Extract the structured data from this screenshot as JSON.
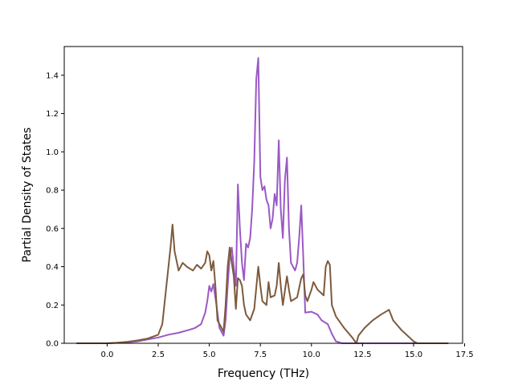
{
  "chart_data": {
    "type": "line",
    "title": "",
    "xlabel": "Frequency (THz)",
    "ylabel": "Partial Density of States",
    "xlim": [
      -2.1,
      17.4
    ],
    "ylim": [
      0,
      1.55
    ],
    "xticks": [
      0.0,
      2.5,
      5.0,
      7.5,
      10.0,
      12.5,
      15.0,
      17.5
    ],
    "xtick_labels": [
      "0.0",
      "2.5",
      "5.0",
      "7.5",
      "10.0",
      "12.5",
      "15.0",
      "17.5"
    ],
    "yticks": [
      0.0,
      0.2,
      0.4,
      0.6,
      0.8,
      1.0,
      1.2,
      1.4
    ],
    "ytick_labels": [
      "0.0",
      "0.2",
      "0.4",
      "0.6",
      "0.8",
      "1.0",
      "1.2",
      "1.4"
    ],
    "grid": false,
    "legend": "none",
    "series": [
      {
        "color": "#9b59c5",
        "points": [
          [
            -1.5,
            0.0
          ],
          [
            0.0,
            0.0
          ],
          [
            0.5,
            0.002
          ],
          [
            1.0,
            0.005
          ],
          [
            1.5,
            0.01
          ],
          [
            2.0,
            0.02
          ],
          [
            2.5,
            0.03
          ],
          [
            3.0,
            0.045
          ],
          [
            3.5,
            0.055
          ],
          [
            4.0,
            0.07
          ],
          [
            4.3,
            0.08
          ],
          [
            4.6,
            0.1
          ],
          [
            4.8,
            0.16
          ],
          [
            4.9,
            0.22
          ],
          [
            5.0,
            0.3
          ],
          [
            5.1,
            0.27
          ],
          [
            5.2,
            0.31
          ],
          [
            5.35,
            0.2
          ],
          [
            5.5,
            0.08
          ],
          [
            5.7,
            0.04
          ],
          [
            5.8,
            0.12
          ],
          [
            5.9,
            0.3
          ],
          [
            6.0,
            0.45
          ],
          [
            6.1,
            0.5
          ],
          [
            6.2,
            0.4
          ],
          [
            6.3,
            0.3
          ],
          [
            6.4,
            0.83
          ],
          [
            6.5,
            0.6
          ],
          [
            6.6,
            0.42
          ],
          [
            6.7,
            0.33
          ],
          [
            6.8,
            0.52
          ],
          [
            6.9,
            0.5
          ],
          [
            7.0,
            0.55
          ],
          [
            7.1,
            0.7
          ],
          [
            7.2,
            0.95
          ],
          [
            7.3,
            1.38
          ],
          [
            7.4,
            1.49
          ],
          [
            7.5,
            0.87
          ],
          [
            7.6,
            0.8
          ],
          [
            7.7,
            0.82
          ],
          [
            7.8,
            0.75
          ],
          [
            7.9,
            0.72
          ],
          [
            8.0,
            0.6
          ],
          [
            8.1,
            0.65
          ],
          [
            8.2,
            0.78
          ],
          [
            8.3,
            0.72
          ],
          [
            8.4,
            1.06
          ],
          [
            8.5,
            0.7
          ],
          [
            8.6,
            0.55
          ],
          [
            8.7,
            0.85
          ],
          [
            8.8,
            0.97
          ],
          [
            8.9,
            0.6
          ],
          [
            9.0,
            0.42
          ],
          [
            9.1,
            0.4
          ],
          [
            9.2,
            0.38
          ],
          [
            9.3,
            0.42
          ],
          [
            9.4,
            0.55
          ],
          [
            9.5,
            0.72
          ],
          [
            9.6,
            0.45
          ],
          [
            9.7,
            0.16
          ],
          [
            10.0,
            0.165
          ],
          [
            10.3,
            0.15
          ],
          [
            10.5,
            0.12
          ],
          [
            10.8,
            0.1
          ],
          [
            11.0,
            0.05
          ],
          [
            11.2,
            0.01
          ],
          [
            11.5,
            0.0
          ],
          [
            16.7,
            0.0
          ]
        ]
      },
      {
        "color": "#7d5a3c",
        "points": [
          [
            -1.5,
            0.0
          ],
          [
            0.0,
            0.0
          ],
          [
            0.5,
            0.003
          ],
          [
            1.0,
            0.008
          ],
          [
            1.5,
            0.015
          ],
          [
            2.0,
            0.025
          ],
          [
            2.5,
            0.045
          ],
          [
            2.7,
            0.1
          ],
          [
            2.9,
            0.3
          ],
          [
            3.1,
            0.5
          ],
          [
            3.2,
            0.62
          ],
          [
            3.3,
            0.48
          ],
          [
            3.5,
            0.38
          ],
          [
            3.7,
            0.42
          ],
          [
            3.9,
            0.4
          ],
          [
            4.2,
            0.38
          ],
          [
            4.4,
            0.41
          ],
          [
            4.6,
            0.39
          ],
          [
            4.8,
            0.42
          ],
          [
            4.9,
            0.48
          ],
          [
            5.0,
            0.46
          ],
          [
            5.1,
            0.38
          ],
          [
            5.2,
            0.43
          ],
          [
            5.3,
            0.3
          ],
          [
            5.4,
            0.12
          ],
          [
            5.6,
            0.08
          ],
          [
            5.7,
            0.06
          ],
          [
            5.8,
            0.2
          ],
          [
            5.9,
            0.4
          ],
          [
            6.0,
            0.5
          ],
          [
            6.1,
            0.42
          ],
          [
            6.2,
            0.35
          ],
          [
            6.3,
            0.18
          ],
          [
            6.4,
            0.34
          ],
          [
            6.5,
            0.33
          ],
          [
            6.6,
            0.3
          ],
          [
            6.7,
            0.2
          ],
          [
            6.8,
            0.15
          ],
          [
            7.0,
            0.12
          ],
          [
            7.2,
            0.18
          ],
          [
            7.4,
            0.4
          ],
          [
            7.5,
            0.3
          ],
          [
            7.6,
            0.22
          ],
          [
            7.8,
            0.2
          ],
          [
            7.9,
            0.32
          ],
          [
            8.0,
            0.24
          ],
          [
            8.2,
            0.25
          ],
          [
            8.3,
            0.3
          ],
          [
            8.4,
            0.42
          ],
          [
            8.5,
            0.3
          ],
          [
            8.6,
            0.2
          ],
          [
            8.8,
            0.35
          ],
          [
            8.9,
            0.28
          ],
          [
            9.0,
            0.22
          ],
          [
            9.3,
            0.24
          ],
          [
            9.5,
            0.34
          ],
          [
            9.6,
            0.36
          ],
          [
            9.7,
            0.25
          ],
          [
            9.8,
            0.22
          ],
          [
            10.0,
            0.28
          ],
          [
            10.1,
            0.32
          ],
          [
            10.3,
            0.28
          ],
          [
            10.5,
            0.26
          ],
          [
            10.6,
            0.25
          ],
          [
            10.7,
            0.4
          ],
          [
            10.8,
            0.43
          ],
          [
            10.9,
            0.41
          ],
          [
            11.0,
            0.2
          ],
          [
            11.2,
            0.14
          ],
          [
            11.6,
            0.08
          ],
          [
            12.0,
            0.03
          ],
          [
            12.2,
            0.0
          ],
          [
            12.3,
            0.04
          ],
          [
            12.6,
            0.08
          ],
          [
            13.0,
            0.12
          ],
          [
            13.4,
            0.15
          ],
          [
            13.8,
            0.175
          ],
          [
            14.0,
            0.12
          ],
          [
            14.4,
            0.07
          ],
          [
            14.8,
            0.03
          ],
          [
            15.0,
            0.01
          ],
          [
            15.2,
            0.0
          ],
          [
            16.7,
            0.0
          ]
        ]
      }
    ]
  }
}
